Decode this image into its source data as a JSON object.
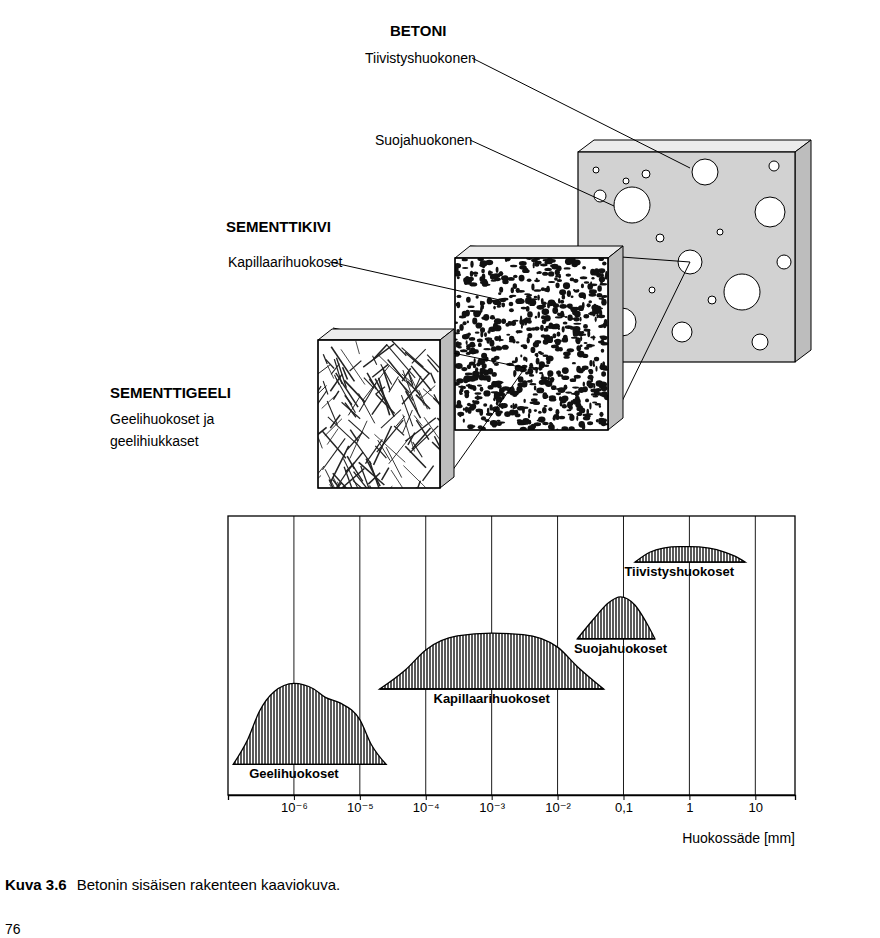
{
  "diagram": {
    "levels": [
      {
        "name": "BETONI",
        "labels": [
          "Tiivistyshuokonen",
          "Suojahuokonen"
        ]
      },
      {
        "name": "SEMENTTIKIVI",
        "labels": [
          "Kapillaarihuokoset"
        ]
      },
      {
        "name": "SEMENTTIGEELI",
        "labels": [
          "Geelihuokoset ja",
          "geelihiukkaset"
        ]
      }
    ]
  },
  "chart_data": {
    "type": "area",
    "log": "x",
    "grid": true,
    "tick_labels": "x",
    "xlabel": "Huokossäde [mm]",
    "xlim": [
      1e-07,
      40
    ],
    "xticks": [
      {
        "value": 1e-06,
        "label": "10⁻⁶"
      },
      {
        "value": 1e-05,
        "label": "10⁻⁵"
      },
      {
        "value": 0.0001,
        "label": "10⁻⁴"
      },
      {
        "value": 0.001,
        "label": "10⁻³"
      },
      {
        "value": 0.01,
        "label": "10⁻²"
      },
      {
        "value": 0.1,
        "label": "0,1"
      },
      1,
      10
    ],
    "ylim": [
      0,
      1
    ],
    "series": [
      {
        "name": "Geelihuokoset",
        "baseline": 0.11,
        "x": [
          1.2e-07,
          2e-07,
          3e-07,
          5e-07,
          1e-06,
          2e-06,
          3e-06,
          5e-06,
          1e-05,
          1.5e-05,
          2.5e-05
        ],
        "values": [
          0.11,
          0.2,
          0.3,
          0.37,
          0.4,
          0.38,
          0.35,
          0.33,
          0.27,
          0.18,
          0.11
        ]
      },
      {
        "name": "Kapillaarihuokoset",
        "baseline": 0.38,
        "x": [
          2e-05,
          5e-05,
          0.0001,
          0.0003,
          0.001,
          0.003,
          0.01,
          0.02,
          0.05
        ],
        "values": [
          0.38,
          0.45,
          0.52,
          0.57,
          0.58,
          0.575,
          0.53,
          0.46,
          0.38
        ]
      },
      {
        "name": "Suojahuokoset",
        "baseline": 0.56,
        "x": [
          0.02,
          0.035,
          0.06,
          0.09,
          0.15,
          0.22,
          0.3
        ],
        "values": [
          0.56,
          0.63,
          0.69,
          0.71,
          0.68,
          0.62,
          0.56
        ]
      },
      {
        "name": "Tiivistyshuokoset",
        "baseline": 0.835,
        "x": [
          0.15,
          0.25,
          0.4,
          0.7,
          1,
          2,
          3.5,
          5,
          7
        ],
        "values": [
          0.835,
          0.87,
          0.885,
          0.89,
          0.89,
          0.885,
          0.87,
          0.855,
          0.835
        ]
      }
    ]
  },
  "caption": {
    "label": "Kuva 3.6",
    "text": "Betonin sisäisen rakenteen kaaviokuva."
  },
  "page_number": 76
}
